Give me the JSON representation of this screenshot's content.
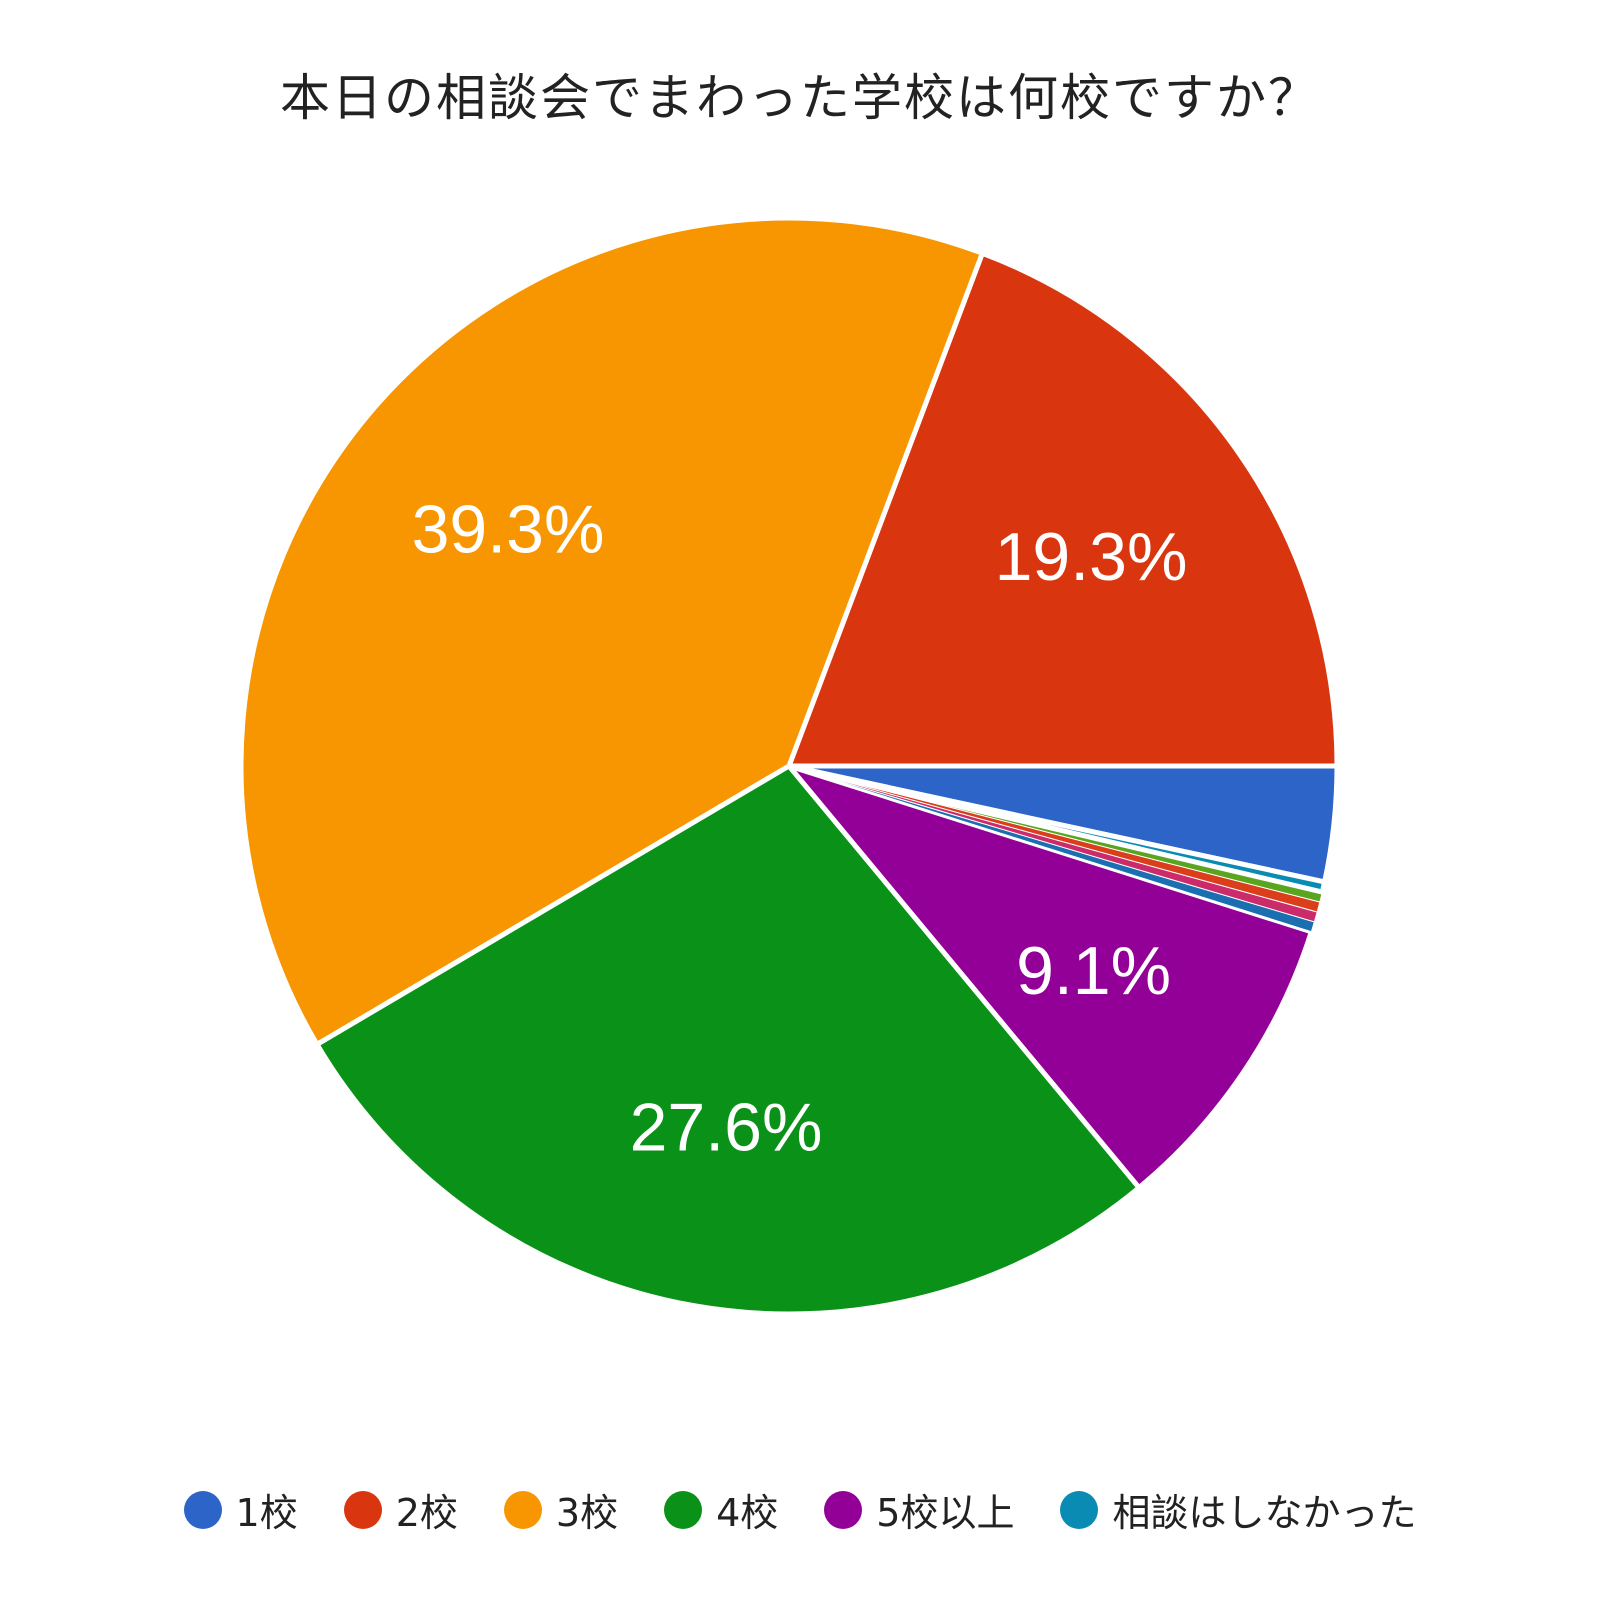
{
  "chart_data": {
    "type": "pie",
    "title": "本日の相談会でまわった学校は何校ですか？",
    "categories": [
      "1校",
      "2校",
      "3校",
      "4校",
      "5校以上",
      "相談はしなかった"
    ],
    "series": [
      {
        "values": [
          3.4,
          19.3,
          39.3,
          27.6,
          9.1,
          0.3
        ],
        "labels": [
          "",
          "19.3%",
          "39.3%",
          "27.6%",
          "9.1%",
          ""
        ]
      }
    ],
    "extra_slivers": [
      {
        "value": 0.3,
        "color": "#1b6fb0"
      },
      {
        "value": 0.3,
        "color": "#cc2b6b"
      },
      {
        "value": 0.3,
        "color": "#db3e1a"
      },
      {
        "value": 0.3,
        "color": "#5aa51f"
      }
    ],
    "colors": [
      "#2d64c8",
      "#d9360f",
      "#f79600",
      "#0a9118",
      "#930098",
      "#0a8bb3"
    ],
    "legend_position": "bottom",
    "grid": false
  }
}
